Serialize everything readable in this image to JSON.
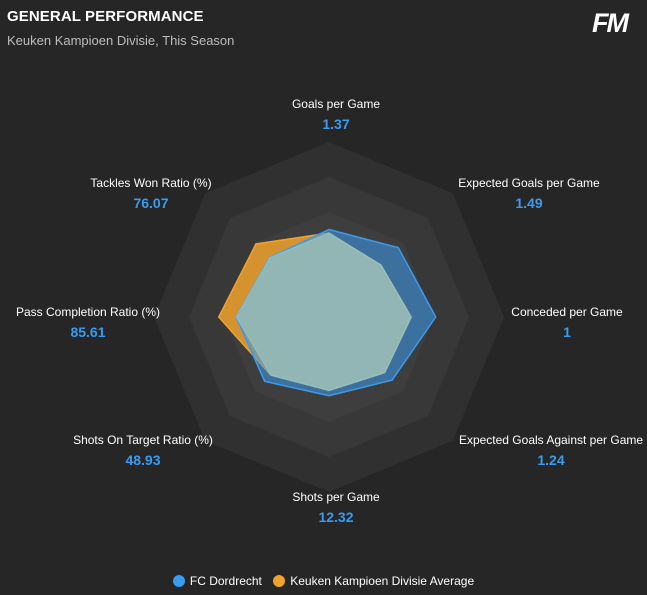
{
  "header": {
    "title": "GENERAL PERFORMANCE",
    "subtitle": "Keuken Kampioen Divisie, This Season",
    "logo": "FM"
  },
  "colors": {
    "background": "#262626",
    "team": "#3a9bef",
    "average": "#f0a22e",
    "value_text": "#3a9bef"
  },
  "chart_data": {
    "type": "radar",
    "title": "GENERAL PERFORMANCE",
    "subtitle": "Keuken Kampioen Divisie, This Season",
    "range": [
      0,
      1
    ],
    "rings": 5,
    "axes": [
      {
        "label": "Goals per Game",
        "value": "1.37"
      },
      {
        "label": "Expected Goals per Game",
        "value": "1.49"
      },
      {
        "label": "Conceded per Game",
        "value": "1"
      },
      {
        "label": "Expected Goals Against per Game",
        "value": "1.24"
      },
      {
        "label": "Shots per Game",
        "value": "12.32"
      },
      {
        "label": "Shots On Target Ratio (%)",
        "value": "48.93"
      },
      {
        "label": "Pass Completion Ratio (%)",
        "value": "85.61"
      },
      {
        "label": "Tackles Won Ratio (%)",
        "value": "76.07"
      }
    ],
    "series": [
      {
        "name": "FC Dordrecht",
        "color": "#3a9bef",
        "values": [
          0.5,
          0.56,
          0.61,
          0.51,
          0.45,
          0.52,
          0.53,
          0.48
        ]
      },
      {
        "name": "Keuken Kampioen Divisie Average",
        "color": "#f0a22e",
        "values": [
          0.48,
          0.42,
          0.47,
          0.45,
          0.42,
          0.47,
          0.63,
          0.59
        ]
      }
    ],
    "legend_position": "bottom"
  }
}
